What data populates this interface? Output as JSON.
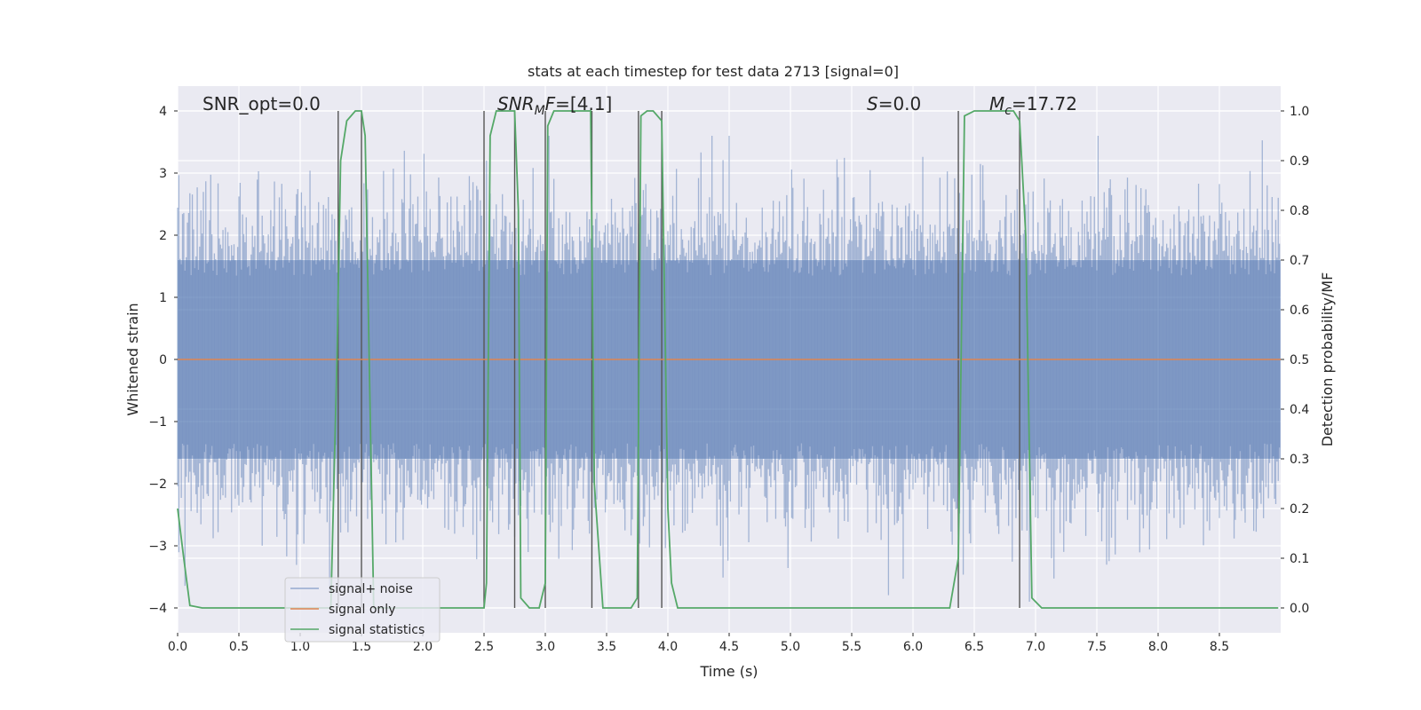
{
  "chart_data": {
    "type": "line",
    "title": "stats at each timestep for test data 2713 [signal=0]",
    "xlabel": "Time (s)",
    "ylabel_left": "Whitened strain",
    "ylabel_right": "Detection probability/MF",
    "xlim": [
      0,
      9.0
    ],
    "ylim_left": [
      -4.4,
      4.4
    ],
    "ylim_right": [
      -0.05,
      1.05
    ],
    "xticks": [
      "0.0",
      "0.5",
      "1.0",
      "1.5",
      "2.0",
      "2.5",
      "3.0",
      "3.5",
      "4.0",
      "4.5",
      "5.0",
      "5.5",
      "6.0",
      "6.5",
      "7.0",
      "7.5",
      "8.0",
      "8.5"
    ],
    "yticks_left": [
      "−4",
      "−3",
      "−2",
      "−1",
      "0",
      "1",
      "2",
      "3",
      "4"
    ],
    "yticks_right": [
      "0.0",
      "0.1",
      "0.2",
      "0.3",
      "0.4",
      "0.5",
      "0.6",
      "0.7",
      "0.8",
      "0.9",
      "1.0"
    ],
    "grid": true,
    "annotations": {
      "snr_opt": "SNR_opt=0.0",
      "snr_mf_main": "SNR",
      "snr_mf_sub": "M",
      "snr_mf_rest": "F=[4.1]",
      "s_main": "S",
      "s_rest": "=0.0",
      "mc_main": "M",
      "mc_sub": "c",
      "mc_rest": "=17.72"
    },
    "colors": {
      "noise": "#4c72b0",
      "signal_only": "#dd8452",
      "statistics": "#55a868",
      "vlines": "#555555",
      "background": "#eaeaf2"
    },
    "series": [
      {
        "name": "signal+ noise",
        "description_level": "noise envelope",
        "band_typical": [
          -1.6,
          1.6
        ],
        "band_extreme": [
          -3.9,
          3.6
        ]
      },
      {
        "name": "signal only",
        "x": [
          0,
          9.0
        ],
        "y": [
          0,
          0
        ]
      },
      {
        "name": "signal statistics",
        "x": [
          0.0,
          0.05,
          0.1,
          0.2,
          1.25,
          1.3,
          1.33,
          1.38,
          1.45,
          1.5,
          1.53,
          1.6,
          2.5,
          2.52,
          2.55,
          2.6,
          2.75,
          2.78,
          2.8,
          2.87,
          2.95,
          3.0,
          3.02,
          3.07,
          3.37,
          3.4,
          3.47,
          3.7,
          3.75,
          3.78,
          3.83,
          3.88,
          3.95,
          4.0,
          4.03,
          4.08,
          6.3,
          6.37,
          6.42,
          6.5,
          6.82,
          6.87,
          6.92,
          6.97,
          7.05,
          8.98
        ],
        "y": [
          0.2,
          0.1,
          0.005,
          0.0,
          0.0,
          0.5,
          0.9,
          0.98,
          1.0,
          1.0,
          0.95,
          0.0,
          0.0,
          0.05,
          0.95,
          1.0,
          1.0,
          0.8,
          0.02,
          0.0,
          0.0,
          0.05,
          0.97,
          1.0,
          1.0,
          0.25,
          0.0,
          0.0,
          0.02,
          0.99,
          1.0,
          1.0,
          0.98,
          0.2,
          0.05,
          0.0,
          0.0,
          0.1,
          0.99,
          1.0,
          1.0,
          0.98,
          0.75,
          0.02,
          0.0,
          0.0
        ]
      }
    ],
    "vlines_x": [
      1.31,
      1.5,
      2.5,
      2.75,
      3.0,
      3.38,
      3.76,
      3.95,
      6.37,
      6.87
    ]
  }
}
